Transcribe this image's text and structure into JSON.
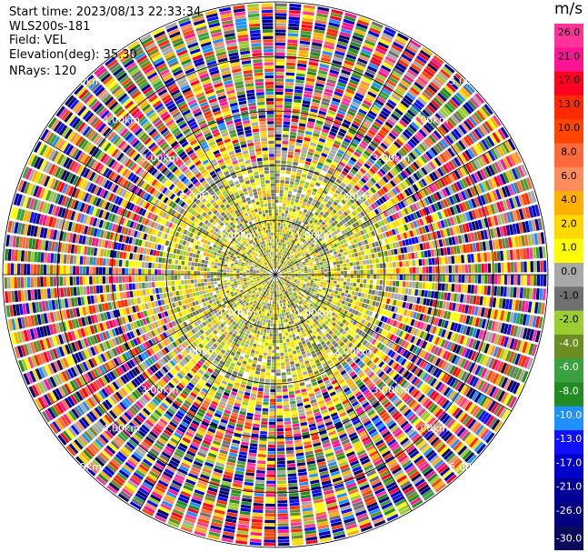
{
  "info": {
    "start_time": "Start time: 2023/08/13 22:33:34",
    "site": "WLS200s-181",
    "field": "Field: VEL",
    "elevation": "Elevation(deg): 35.30",
    "nrays": "NRays: 120"
  },
  "colorbar": {
    "unit": "m/s",
    "ticks": [
      "26.0",
      "21.0",
      "17.0",
      "13.0",
      "10.0",
      "8.0",
      "6.0",
      "4.0",
      "2.0",
      "1.0",
      "0.0",
      "-1.0",
      "-2.0",
      "-4.0",
      "-6.0",
      "-8.0",
      "-10.0",
      "-13.0",
      "-17.0",
      "-21.0",
      "-26.0",
      "-30.0"
    ],
    "colors": [
      "#ff3399",
      "#ff1493",
      "#ff0022",
      "#ff2a00",
      "#ff4500",
      "#ff6a3c",
      "#ff8c5a",
      "#ffb000",
      "#ffd800",
      "#ffff00",
      "#a8a8a8",
      "#707070",
      "#9acd32",
      "#6b8e23",
      "#3aa040",
      "#228b22",
      "#1e90ff",
      "#1010ff",
      "#0000cd",
      "#000099",
      "#000080",
      "#0a0a5a"
    ]
  },
  "chart_data": {
    "type": "heatmap",
    "projection": "polar PPI",
    "field": "VEL",
    "units": "m/s",
    "n_rays": 120,
    "elevation_deg": 35.3,
    "range_ring_labels": [
      "1.00km",
      "2.00km",
      "3.00km",
      "4.00km",
      "5.00km"
    ],
    "range_rings_km": [
      1,
      2,
      3,
      4,
      5
    ],
    "max_range_km": 5.0,
    "color_scale_min": -30.0,
    "color_scale_max": 26.0,
    "inner_region": "coherent velocities between about -3 and +3 m/s (gray, yellow-green, yellow/orange)",
    "outer_region": "noisy values spanning the full color scale"
  }
}
